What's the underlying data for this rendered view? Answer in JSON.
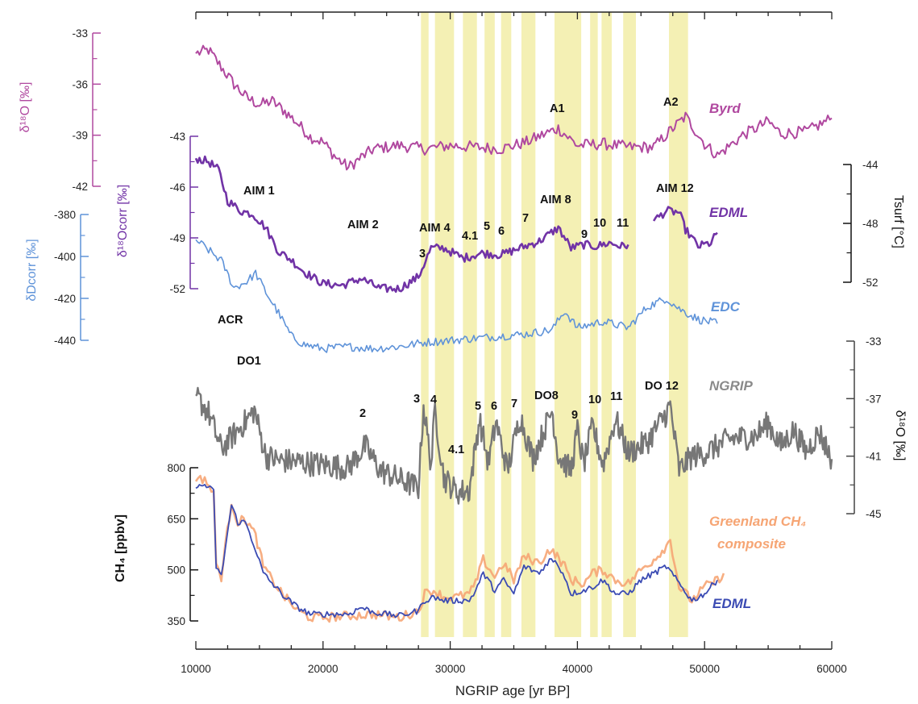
{
  "chart_data": {
    "type": "line",
    "xlabel": "NGRIP age  [yr BP]",
    "xlim": [
      10000,
      60000
    ],
    "xticks": [
      "10000",
      "20000",
      "30000",
      "40000",
      "50000",
      "60000"
    ],
    "shaded_bands": [
      [
        27700,
        28300
      ],
      [
        28800,
        30300
      ],
      [
        31000,
        32100
      ],
      [
        32700,
        33500
      ],
      [
        34000,
        34800
      ],
      [
        35600,
        36700
      ],
      [
        38200,
        40300
      ],
      [
        41000,
        41600
      ],
      [
        41900,
        42700
      ],
      [
        43600,
        44600
      ],
      [
        47200,
        48700
      ]
    ],
    "colors": {
      "byrd": "#b0489f",
      "edml": "#7133a6",
      "edc": "#5f93d9",
      "ngrip": "#777777",
      "ch4_greenland": "#f6a574",
      "ch4_edml": "#3b4bb3",
      "band": "#f4f0b4"
    },
    "axes": [
      {
        "id": "byrd",
        "ylabel": "δ18O  [‰]",
        "side": "left",
        "ylim": [
          -42,
          -33
        ],
        "ticks": [
          "-33",
          "-36",
          "-39",
          "-42"
        ]
      },
      {
        "id": "edml",
        "ylabel": "δ18Ocorr  [‰]",
        "side": "left",
        "ylim": [
          -52,
          -43
        ],
        "ticks": [
          "-43",
          "-46",
          "-49",
          "-52"
        ]
      },
      {
        "id": "edc",
        "ylabel": "δDcorr  [‰]",
        "side": "left",
        "ylim": [
          -440,
          -380
        ],
        "ticks": [
          "-380",
          "-400",
          "-420",
          "-440"
        ]
      },
      {
        "id": "tsurf",
        "ylabel": "Tsurf  [°C]",
        "side": "right",
        "ylim": [
          -52,
          -44
        ],
        "ticks": [
          "-44",
          "-48",
          "-52"
        ]
      },
      {
        "id": "ngrip",
        "ylabel": "δ18O  [‰]",
        "side": "right",
        "ylim": [
          -45,
          -33
        ],
        "ticks": [
          "-33",
          "-37",
          "-41",
          "-45"
        ]
      },
      {
        "id": "ch4",
        "ylabel": "CH4  [ppbv]",
        "side": "left",
        "ylim": [
          350,
          800
        ],
        "ticks": [
          "800",
          "650",
          "500",
          "350"
        ]
      }
    ],
    "series": [
      {
        "name": "Byrd",
        "axis": "byrd",
        "x": [
          10000,
          11000,
          12000,
          13000,
          14000,
          15000,
          16000,
          17000,
          18000,
          19000,
          20000,
          21000,
          22000,
          23000,
          24000,
          26000,
          28000,
          30000,
          32000,
          34000,
          36000,
          37500,
          38500,
          40000,
          42000,
          44000,
          46000,
          47500,
          48500,
          50000,
          51000,
          53000,
          55000,
          56000,
          58000,
          60000
        ],
        "y": [
          -34.2,
          -34.0,
          -35.0,
          -36.0,
          -36.8,
          -37.2,
          -37.0,
          -37.6,
          -38.3,
          -39.1,
          -39.4,
          -40.3,
          -40.9,
          -40.3,
          -39.8,
          -39.6,
          -39.8,
          -39.6,
          -39.7,
          -39.8,
          -39.4,
          -38.9,
          -38.6,
          -39.6,
          -39.5,
          -39.7,
          -39.7,
          -38.6,
          -37.9,
          -39.5,
          -40.2,
          -39.0,
          -38.2,
          -38.9,
          -38.8,
          -38.0
        ]
      },
      {
        "name": "EDML",
        "axis": "edml",
        "x": [
          10000,
          11000,
          11800,
          12500,
          13500,
          14500,
          15500,
          16500,
          17500,
          18500,
          20000,
          21500,
          23000,
          24500,
          26000,
          27500,
          28500,
          29500,
          31000,
          32500,
          34000,
          35500,
          37000,
          38500,
          39500,
          40500,
          41500,
          42500,
          43500,
          44000,
          45000,
          46000,
          47000,
          48000,
          48500,
          49500,
          50500,
          51000
        ],
        "y": [
          -44.3,
          -44.5,
          -45.0,
          -46.8,
          -47.4,
          -47.6,
          -48.4,
          -49.8,
          -50.3,
          -51.0,
          -51.7,
          -51.8,
          -51.4,
          -52.0,
          -52.0,
          -51.3,
          -49.6,
          -49.6,
          -50.2,
          -49.9,
          -50.0,
          -49.6,
          -49.2,
          -48.4,
          -49.6,
          -49.4,
          -49.5,
          -49.3,
          -49.5,
          -49.4,
          null,
          -48.0,
          -47.4,
          -47.5,
          -48.5,
          -49.5,
          -49.3,
          -48.7
        ]
      },
      {
        "name": "EDC",
        "axis": "edc",
        "x": [
          10000,
          11000,
          12000,
          13000,
          14000,
          14700,
          15500,
          16500,
          17500,
          18500,
          20000,
          22000,
          24000,
          26000,
          28000,
          30000,
          32000,
          34000,
          36000,
          38000,
          39000,
          40000,
          42000,
          44000,
          45500,
          47000,
          48000,
          49500,
          51000
        ],
        "y": [
          -392,
          -397,
          -402,
          -415,
          -412,
          -408,
          -417,
          -427,
          -438,
          -442,
          -444,
          -443,
          -444,
          -443,
          -441,
          -440,
          -439,
          -438,
          -437,
          -435,
          -426,
          -434,
          -431,
          -434,
          -424,
          -420,
          -425,
          -430,
          -432
        ]
      },
      {
        "name": "NGRIP",
        "axis": "ngrip",
        "x": [
          10000,
          11000,
          12000,
          13000,
          14000,
          14600,
          15500,
          16500,
          18000,
          20000,
          22000,
          23300,
          24500,
          26500,
          27500,
          27900,
          28500,
          28800,
          29500,
          30500,
          31500,
          32300,
          33000,
          33600,
          34500,
          35500,
          36500,
          38000,
          38500,
          39500,
          40000,
          40500,
          41200,
          42000,
          43000,
          44000,
          45500,
          47000,
          47300,
          48000,
          49000,
          50000,
          52000,
          54000,
          55000,
          56000,
          57000,
          58000,
          59000,
          60000
        ],
        "y": [
          -36.8,
          -38.0,
          -40.5,
          -39.5,
          -38.5,
          -37.8,
          -41.0,
          -41.3,
          -41.4,
          -41.6,
          -41.8,
          -40.3,
          -42.0,
          -42.8,
          -43.2,
          -37.5,
          -41.6,
          -37.8,
          -42.5,
          -43.5,
          -43.4,
          -38.4,
          -41.5,
          -38.6,
          -42.0,
          -38.2,
          -41.2,
          -37.8,
          -41.0,
          -42.0,
          -39.2,
          -41.6,
          -38.9,
          -41.6,
          -38.4,
          -40.8,
          -40.0,
          -38.0,
          -37.5,
          -42.0,
          -41.0,
          -40.8,
          -39.8,
          -39.6,
          -38.7,
          -40.3,
          -39.2,
          -40.7,
          -39.3,
          -41.2
        ]
      },
      {
        "name": "Greenland CH4 composite",
        "axis": "ch4",
        "x": [
          10000,
          10700,
          11400,
          11600,
          12000,
          12800,
          13300,
          13900,
          14700,
          15300,
          16000,
          17000,
          18000,
          19000,
          20000,
          22000,
          24000,
          26000,
          27500,
          28000,
          28700,
          29500,
          30500,
          31500,
          32000,
          32600,
          33500,
          34200,
          35000,
          35800,
          37000,
          37800,
          38400,
          39000,
          39500,
          40500,
          41200,
          42000,
          43000,
          44000,
          45000,
          46000,
          47000,
          47300,
          48000,
          49000,
          50000,
          51000,
          51500
        ],
        "y": [
          760,
          770,
          720,
          520,
          480,
          700,
          640,
          650,
          600,
          510,
          470,
          420,
          380,
          360,
          360,
          365,
          370,
          360,
          380,
          430,
          440,
          420,
          420,
          430,
          460,
          530,
          480,
          520,
          470,
          540,
          520,
          560,
          540,
          510,
          470,
          460,
          490,
          500,
          470,
          460,
          500,
          530,
          570,
          590,
          450,
          410,
          450,
          470,
          490
        ]
      },
      {
        "name": "EDML",
        "axis": "ch4",
        "x": [
          10000,
          10700,
          11400,
          11600,
          12000,
          12800,
          13300,
          13900,
          14700,
          15300,
          16000,
          17000,
          18000,
          19000,
          20000,
          22000,
          23000,
          24000,
          26000,
          27500,
          28000,
          28700,
          29500,
          30500,
          31500,
          32000,
          32600,
          33500,
          34200,
          35000,
          35800,
          37000,
          37800,
          38400,
          39000,
          39500,
          40500,
          41200,
          42000,
          43000,
          44000,
          45000,
          46000,
          47000,
          48000,
          49000,
          50000,
          51000
        ],
        "y": [
          740,
          750,
          730,
          510,
          480,
          690,
          640,
          640,
          560,
          490,
          460,
          420,
          390,
          370,
          370,
          370,
          390,
          375,
          365,
          380,
          410,
          420,
          410,
          410,
          410,
          440,
          490,
          440,
          470,
          430,
          510,
          490,
          530,
          520,
          480,
          430,
          440,
          450,
          470,
          430,
          430,
          470,
          490,
          510,
          460,
          410,
          430,
          470
        ]
      }
    ],
    "annotations": {
      "byrd": [
        "A1",
        "A2"
      ],
      "aim": [
        "AIM 1",
        "AIM 2",
        "3",
        "AIM 4",
        "4.1",
        "5",
        "6",
        "7",
        "AIM 8",
        "9",
        "10",
        "11",
        "AIM 12"
      ],
      "acr": "ACR",
      "do": [
        "DO1",
        "2",
        "3",
        "4",
        "4.1",
        "5",
        "6",
        "7",
        "DO8",
        "9",
        "10",
        "11",
        "DO 12"
      ]
    },
    "record_labels": {
      "byrd": "Byrd",
      "edml": "EDML",
      "edc": "EDC",
      "ngrip": "NGRIP",
      "ch4_g1": "Greenland CH₄",
      "ch4_g2": "composite",
      "ch4_edml": "EDML"
    },
    "axis_labels": {
      "byrd": "δ¹⁸O  [‰]",
      "edml": "δ¹⁸Ocorr  [‰]",
      "edc": "δDcorr  [‰]",
      "tsurf": "Tsurf  [°C]",
      "ngrip": "δ¹⁸O  [‰]",
      "ch4": "CH₄  [ppbv]"
    }
  }
}
